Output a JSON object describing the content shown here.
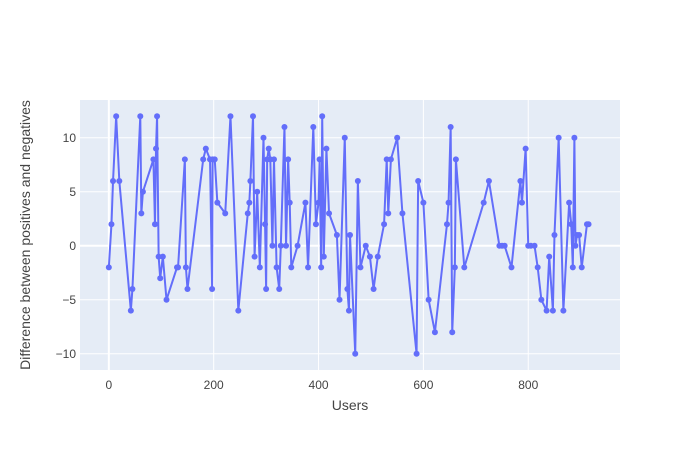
{
  "chart_data": {
    "type": "line",
    "mode": "lines+markers",
    "title": "",
    "xlabel": "Users",
    "ylabel": "Difference between positives and negatives",
    "xlim": [
      -55,
      975
    ],
    "ylim": [
      -11.5,
      13.5
    ],
    "x_ticks": [
      0,
      200,
      400,
      600,
      800
    ],
    "y_ticks": [
      -10,
      -5,
      0,
      5,
      10
    ],
    "grid": true,
    "legend": "none",
    "colors": {
      "line": "#636efa",
      "plot_bg": "#e5ecf6",
      "grid": "#ffffff",
      "paper_bg": "#ffffff",
      "text": "#444444"
    },
    "series": [
      {
        "x": [
          0,
          5,
          8,
          14,
          20,
          42,
          45,
          60,
          62,
          65,
          85,
          88,
          90,
          92,
          95,
          98,
          103,
          110,
          130,
          132,
          145,
          147,
          150,
          180,
          185,
          193,
          197,
          198,
          202,
          207,
          222,
          232,
          247,
          265,
          268,
          270,
          275,
          278,
          283,
          288,
          295,
          298,
          300,
          302,
          305,
          308,
          312,
          315,
          320,
          325,
          328,
          335,
          338,
          342,
          345,
          348,
          360,
          375,
          380,
          390,
          395,
          400,
          402,
          405,
          407,
          410,
          415,
          420,
          435,
          440,
          450,
          455,
          458,
          460,
          470,
          475,
          480,
          490,
          498,
          505,
          513,
          525,
          530,
          533,
          538,
          550,
          560,
          587,
          590,
          600,
          610,
          622,
          645,
          648,
          652,
          655,
          660,
          662,
          678,
          715,
          725,
          745,
          750,
          755,
          768,
          785,
          788,
          795,
          800,
          805,
          812,
          818,
          825,
          835,
          840,
          847,
          850,
          858,
          867,
          878,
          882,
          885,
          888,
          890,
          893,
          897,
          902,
          912,
          915
        ],
        "y": [
          -2,
          2,
          6,
          12,
          6,
          -6,
          -4,
          12,
          3,
          5,
          8,
          2,
          9,
          12,
          -1,
          -3,
          -1,
          -5,
          -2,
          -2,
          8,
          -2,
          -4,
          8,
          9,
          8,
          -4,
          8,
          8,
          4,
          3,
          12,
          -6,
          3,
          4,
          6,
          12,
          -1,
          5,
          -2,
          10,
          2,
          -4,
          8,
          9,
          8,
          0,
          8,
          -2,
          -4,
          0,
          11,
          0,
          8,
          4,
          -2,
          0,
          4,
          -2,
          11,
          2,
          4,
          8,
          -2,
          12,
          -1,
          9,
          3,
          1,
          -5,
          10,
          -4,
          -6,
          1,
          -10,
          6,
          -2,
          0,
          -1,
          -4,
          -1,
          2,
          8,
          3,
          8,
          10,
          3,
          -10,
          6,
          4,
          -5,
          -8,
          2,
          4,
          11,
          -8,
          -2,
          8,
          -2,
          4,
          6,
          0,
          0,
          0,
          -2,
          6,
          4,
          9,
          0,
          0,
          0,
          -2,
          -5,
          -6,
          -1,
          -6,
          1,
          10,
          -6,
          4,
          2,
          -2,
          10,
          0,
          1,
          1,
          -2,
          2,
          2
        ]
      }
    ]
  }
}
